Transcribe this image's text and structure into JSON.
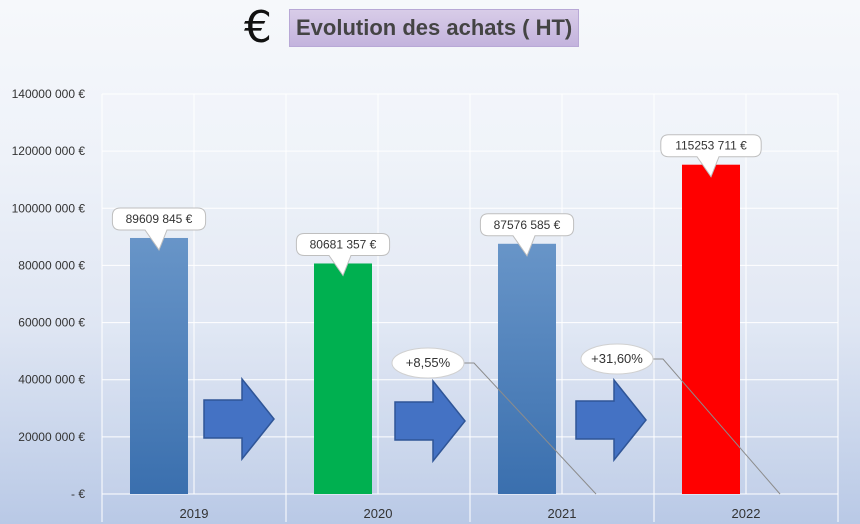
{
  "title": "Evolution des achats ( HT)",
  "icon": "euro-icon",
  "colors": {
    "bar_blue": "#4f81bd",
    "bar_green": "#00b050",
    "bar_red": "#ff0000",
    "arrow_blue": "#4472c4",
    "grid": "#ffffff",
    "title_bg": "#cbbce0"
  },
  "chart_data": {
    "type": "bar",
    "title": "Evolution des achats ( HT)",
    "categories": [
      "2019",
      "2020",
      "2021",
      "2022"
    ],
    "values": [
      89609845,
      80681357,
      87576585,
      115253711
    ],
    "value_labels": [
      "89609 845 €",
      "80681 357 €",
      "87576 585 €",
      "115253 711 €"
    ],
    "bar_colors": [
      "#4f81bd",
      "#00b050",
      "#4f81bd",
      "#ff0000"
    ],
    "ylim": [
      0,
      140000000
    ],
    "yticks": [
      0,
      20000000,
      40000000,
      60000000,
      80000000,
      100000000,
      120000000,
      140000000
    ],
    "ytick_labels": [
      "-  €",
      "20000 000 €",
      "40000 000 €",
      "60000 000 €",
      "80000 000 €",
      "100000 000 €",
      "120000 000 €",
      "140000 000 €"
    ],
    "annotations": [
      "+8,55%",
      "+31,60%"
    ],
    "grid": true,
    "legend": "none"
  }
}
